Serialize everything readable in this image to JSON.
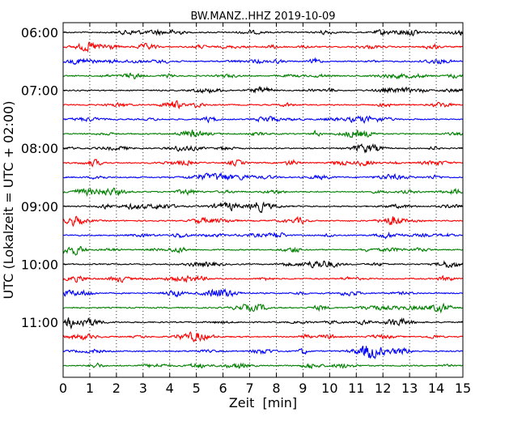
{
  "chart_data": {
    "type": "line",
    "title": "BW.MANZ..HHZ 2019-10-09",
    "xlabel": "Zeit  [min]",
    "ylabel": "UTC (Lokalzeit = UTC + 02:00)",
    "xlim": [
      0,
      15
    ],
    "x_ticks": [
      "0",
      "1",
      "2",
      "3",
      "4",
      "5",
      "6",
      "7",
      "8",
      "9",
      "10",
      "11",
      "12",
      "13",
      "14",
      "15"
    ],
    "y_tick_labels": [
      "06:00",
      "07:00",
      "08:00",
      "09:00",
      "10:00",
      "11:00"
    ],
    "grid": "vertical dotted",
    "trace_interval_min": 15,
    "trace_count": 24,
    "colors": [
      "#000000",
      "#ff0000",
      "#0000ff",
      "#008000"
    ]
  }
}
